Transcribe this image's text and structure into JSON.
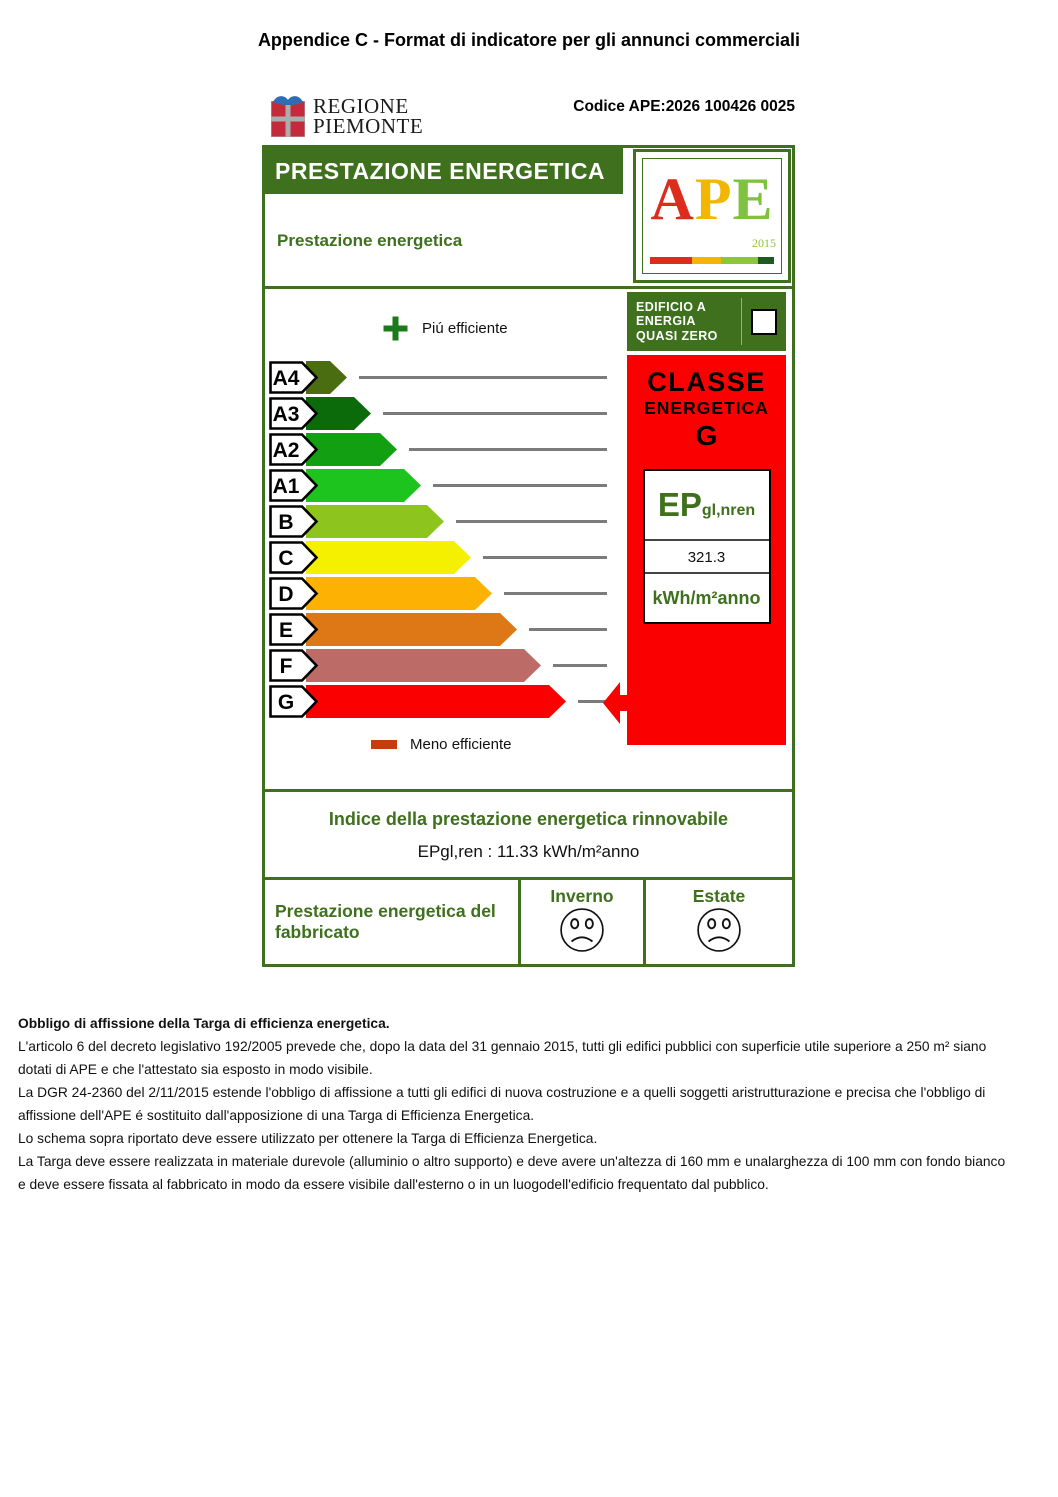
{
  "page": {
    "title": "Appendice C - Format di indicatore per gli annunci commerciali",
    "codice_ape": "Codice APE:2026 100426 0025"
  },
  "region_logo": {
    "line1": "REGIONE",
    "line2": "PIEMONTE"
  },
  "certificate": {
    "header_bar": "PRESTAZIONE ENERGETICA",
    "header_sub": "Prestazione energetica",
    "ape_logo": {
      "letters": [
        {
          "char": "A",
          "color": "#DD2B1C"
        },
        {
          "char": "P",
          "color": "#F2B600"
        },
        {
          "char": "E",
          "color": "#7FC241"
        }
      ],
      "year": "2015",
      "bar_segments": [
        {
          "color": "#DD2B1C",
          "width_pct": 34
        },
        {
          "color": "#F2B600",
          "width_pct": 23
        },
        {
          "color": "#8CC63F",
          "width_pct": 30
        },
        {
          "color": "#1E5B20",
          "width_pct": 13
        }
      ]
    },
    "nzeb_badge": {
      "lines": [
        "EDIFICIO A",
        "ENERGIA",
        "QUASI ZERO"
      ],
      "checked": false
    },
    "scale": {
      "legend_more": "Piú efficiente",
      "legend_less": "Meno efficiente",
      "assigned_class": "G",
      "classes": [
        {
          "label": "A4",
          "color": "#4A6D12",
          "arrow_width": 41
        },
        {
          "label": "A3",
          "color": "#0B6B0B",
          "arrow_width": 65
        },
        {
          "label": "A2",
          "color": "#12A012",
          "arrow_width": 91
        },
        {
          "label": "A1",
          "color": "#1DC41D",
          "arrow_width": 115
        },
        {
          "label": "B",
          "color": "#8EC41E",
          "arrow_width": 138
        },
        {
          "label": "C",
          "color": "#F5F000",
          "arrow_width": 165
        },
        {
          "label": "D",
          "color": "#FCB103",
          "arrow_width": 186
        },
        {
          "label": "E",
          "color": "#DE7716",
          "arrow_width": 211
        },
        {
          "label": "F",
          "color": "#BD6B66",
          "arrow_width": 235
        },
        {
          "label": "G",
          "color": "#FB0000",
          "arrow_width": 260
        }
      ]
    },
    "class_box": {
      "title1": "CLASSE",
      "title2": "ENERGETICA",
      "letter": "G",
      "ep_label": "EP",
      "ep_sub": "gl,nren",
      "value": "321.3",
      "unit": "kWh/m²anno"
    },
    "renewable": {
      "title": "Indice della prestazione energetica rinnovabile",
      "value": "EPgl,ren : 11.33 kWh/m²anno"
    },
    "building_row": {
      "label": "Prestazione energetica del fabbricato",
      "winter": "Inverno",
      "summer": "Estate",
      "winter_mood": "sad",
      "summer_mood": "sad"
    }
  },
  "footer": {
    "heading": "Obbligo di affissione della Targa di efficienza energetica.",
    "lines": [
      "L'articolo 6 del decreto legislativo 192/2005 prevede che, dopo la data del 31 gennaio 2015, tutti gli edifici pubblici con superficie utile superiore a 250 m² siano",
      "dotati di APE e che l'attestato sia esposto in modo visibile.",
      "La DGR 24-2360 del 2/11/2015 estende l'obbligo di affissione a tutti gli edifici di nuova costruzione e a quelli soggetti aristrutturazione e precisa che l'obbligo di",
      "affissione dell'APE é sostituito dall'apposizione di una Targa di Efficienza Energetica.",
      "Lo schema sopra riportato deve essere utilizzato per ottenere la Targa di Efficienza Energetica.",
      "La Targa deve essere realizzata in materiale durevole (alluminio o altro supporto) e deve avere un'altezza di 160 mm e unalarghezza di 100 mm con fondo bianco",
      "e deve essere fissata al fabbricato in modo da essere visibile dall'esterno o in un luogodell'edificio frequentato dal pubblico."
    ]
  },
  "colors": {
    "green": "#3E701D",
    "red": "#FB0000",
    "line_gray": "#7B7B7B",
    "less_swatch": "#C43C10",
    "plus_icon": "#1B7A1B"
  }
}
